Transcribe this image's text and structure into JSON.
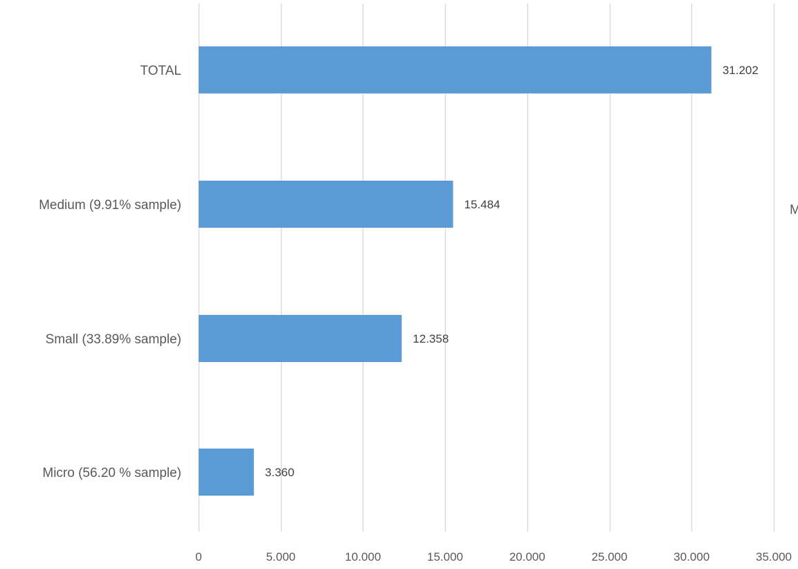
{
  "chart_data": {
    "type": "bar",
    "orientation": "horizontal",
    "categories": [
      "TOTAL",
      "Medium  (9.91% sample)",
      "Small (33.89% sample)",
      "Micro (56.20 % sample)"
    ],
    "values": [
      31202,
      15484,
      12358,
      3360
    ],
    "data_labels": [
      "31.202",
      "15.484",
      "12.358",
      "3.360"
    ],
    "x_ticks": [
      0,
      5000,
      10000,
      15000,
      20000,
      25000,
      30000,
      35000
    ],
    "x_tick_labels": [
      "0",
      "5.000",
      "10.000",
      "15.000",
      "20.000",
      "25.000",
      "30.000",
      "35.000"
    ],
    "xlim": [
      0,
      35000
    ],
    "title": "",
    "xlabel": "",
    "ylabel": "",
    "grid": "vertical",
    "legend": "none",
    "bar_color": "#5b9bd5",
    "grid_color": "#d9d9d9",
    "edge_text": "M"
  }
}
